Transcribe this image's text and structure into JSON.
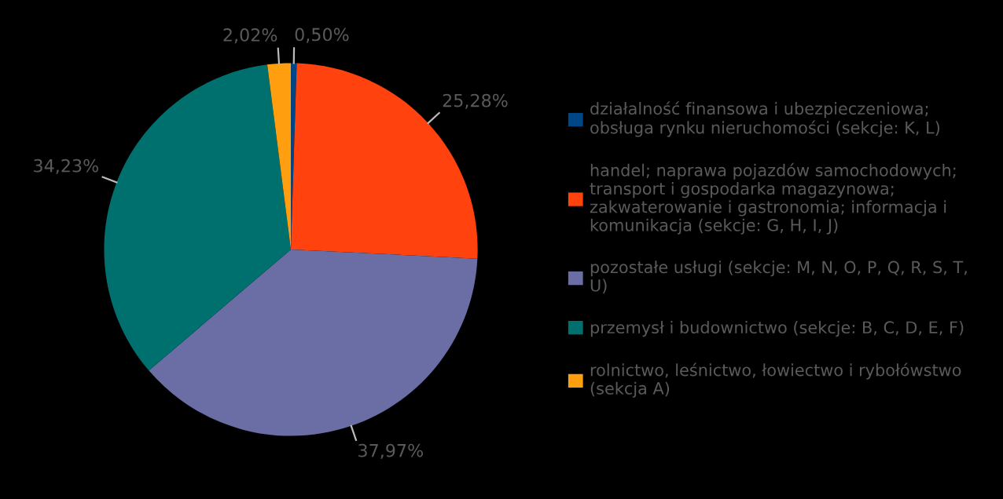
{
  "chart_data": {
    "type": "pie",
    "categories": [
      "działalność finansowa i ubezpieczeniowa;\nobsługa rynku nieruchomości (sekcje: K, L)",
      "handel; naprawa pojazdów samochodowych;\ntransport i gospodarka magazynowa;\nzakwaterowanie i gastronomia; informacja i\nkomunikacja (sekcje: G, H, I, J)",
      "pozostałe usługi (sekcje: M, N, O, P, Q, R, S, T,\nU)",
      "przemysł i budownictwo (sekcje: B, C, D, E, F)",
      "rolnictwo, leśnictwo, łowiectwo i rybołówstwo\n(sekcja A)"
    ],
    "values": [
      0.5,
      25.28,
      37.97,
      34.23,
      2.02
    ],
    "value_labels": [
      "0,50%",
      "25,28%",
      "37,97%",
      "34,23%",
      "2,02%"
    ],
    "colors": [
      "#004586",
      "#ff420e",
      "#6b6ea4",
      "#00706e",
      "#ff9e0e"
    ],
    "legend": "right"
  }
}
